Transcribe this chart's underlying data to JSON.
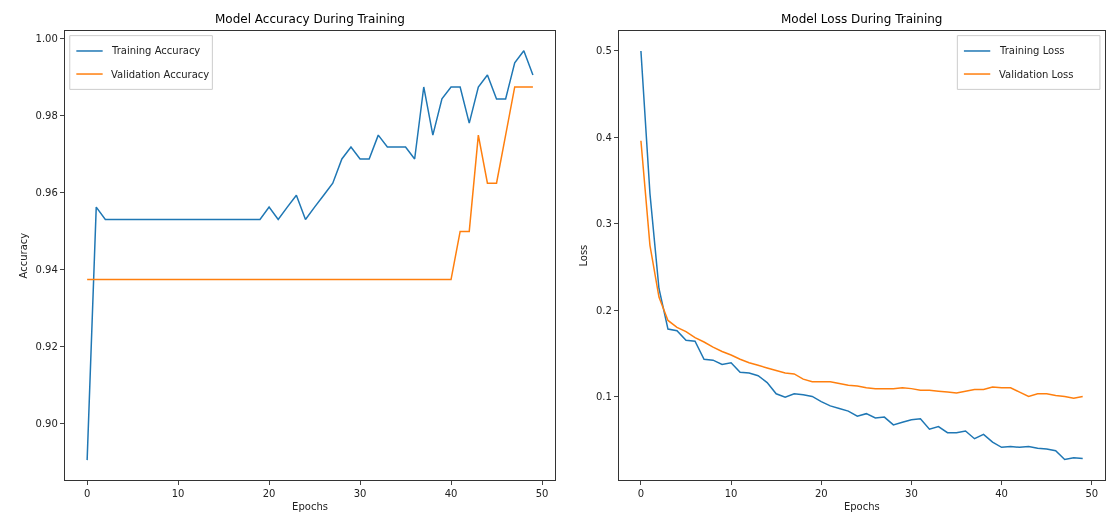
{
  "chart_data": [
    {
      "type": "line",
      "title": "Model Accuracy During Training",
      "xlabel": "Epochs",
      "ylabel": "Accuracy",
      "legend": "top left",
      "grid": false,
      "x": [
        0,
        1,
        2,
        3,
        4,
        5,
        6,
        7,
        8,
        9,
        10,
        11,
        12,
        13,
        14,
        15,
        16,
        17,
        18,
        19,
        20,
        21,
        22,
        23,
        24,
        25,
        26,
        27,
        28,
        29,
        30,
        31,
        32,
        33,
        34,
        35,
        36,
        37,
        38,
        39,
        40,
        41,
        42,
        43,
        44,
        45,
        46,
        47,
        48,
        49
      ],
      "xlim": [
        -2.45,
        51.45
      ],
      "xticks": [
        0,
        10,
        20,
        30,
        40,
        50
      ],
      "ylim": [
        0.8854,
        1.002
      ],
      "yticks": [
        {
          "value": 0.9,
          "label": "0.90"
        },
        {
          "value": 0.92,
          "label": "0.92"
        },
        {
          "value": 0.94,
          "label": "0.94"
        },
        {
          "value": 0.96,
          "label": "0.96"
        },
        {
          "value": 0.98,
          "label": "0.98"
        },
        {
          "value": 1.0,
          "label": "1.00"
        }
      ],
      "series": [
        {
          "name": "Training Accuracy",
          "color": "#1f77b4",
          "values": [
            0.8906,
            0.9563,
            0.9531,
            0.9531,
            0.9531,
            0.9531,
            0.9531,
            0.9531,
            0.9531,
            0.9531,
            0.9531,
            0.9531,
            0.9531,
            0.9531,
            0.9531,
            0.9531,
            0.9531,
            0.9531,
            0.9531,
            0.9531,
            0.9563,
            0.9531,
            0.9563,
            0.9594,
            0.9531,
            0.9563,
            0.9594,
            0.9625,
            0.9688,
            0.9719,
            0.9688,
            0.9688,
            0.975,
            0.9719,
            0.9719,
            0.9719,
            0.9688,
            0.9875,
            0.975,
            0.9844,
            0.9875,
            0.9875,
            0.9781,
            0.9875,
            0.9906,
            0.9844,
            0.9844,
            0.9938,
            0.9969,
            0.9906
          ]
        },
        {
          "name": "Validation Accuracy",
          "color": "#ff7f0e",
          "values": [
            0.9375,
            0.9375,
            0.9375,
            0.9375,
            0.9375,
            0.9375,
            0.9375,
            0.9375,
            0.9375,
            0.9375,
            0.9375,
            0.9375,
            0.9375,
            0.9375,
            0.9375,
            0.9375,
            0.9375,
            0.9375,
            0.9375,
            0.9375,
            0.9375,
            0.9375,
            0.9375,
            0.9375,
            0.9375,
            0.9375,
            0.9375,
            0.9375,
            0.9375,
            0.9375,
            0.9375,
            0.9375,
            0.9375,
            0.9375,
            0.9375,
            0.9375,
            0.9375,
            0.9375,
            0.9375,
            0.9375,
            0.9375,
            0.95,
            0.95,
            0.975,
            0.9625,
            0.9625,
            0.975,
            0.9875,
            0.9875,
            0.9875
          ]
        }
      ]
    },
    {
      "type": "line",
      "title": "Model Loss During Training",
      "xlabel": "Epochs",
      "ylabel": "Loss",
      "legend": "top right",
      "grid": false,
      "x": [
        0,
        1,
        2,
        3,
        4,
        5,
        6,
        7,
        8,
        9,
        10,
        11,
        12,
        13,
        14,
        15,
        16,
        17,
        18,
        19,
        20,
        21,
        22,
        23,
        24,
        25,
        26,
        27,
        28,
        29,
        30,
        31,
        32,
        33,
        34,
        35,
        36,
        37,
        38,
        39,
        40,
        41,
        42,
        43,
        44,
        45,
        46,
        47,
        48,
        49
      ],
      "xlim": [
        -2.45,
        51.45
      ],
      "xticks": [
        0,
        10,
        20,
        30,
        40,
        50
      ],
      "ylim": [
        0.003,
        0.523
      ],
      "yticks": [
        0.1,
        0.2,
        0.3,
        0.4,
        0.5
      ],
      "series": [
        {
          "name": "Training Loss",
          "color": "#1f77b4",
          "values": [
            0.5,
            0.335,
            0.225,
            0.178,
            0.176,
            0.165,
            0.164,
            0.143,
            0.142,
            0.137,
            0.139,
            0.128,
            0.127,
            0.124,
            0.116,
            0.103,
            0.099,
            0.103,
            0.102,
            0.1,
            0.094,
            0.089,
            0.086,
            0.083,
            0.077,
            0.08,
            0.075,
            0.076,
            0.067,
            0.07,
            0.073,
            0.074,
            0.062,
            0.065,
            0.058,
            0.058,
            0.06,
            0.051,
            0.056,
            0.047,
            0.041,
            0.042,
            0.041,
            0.042,
            0.04,
            0.039,
            0.037,
            0.027,
            0.029,
            0.028
          ]
        },
        {
          "name": "Validation Loss",
          "color": "#ff7f0e",
          "values": [
            0.396,
            0.275,
            0.215,
            0.188,
            0.18,
            0.175,
            0.168,
            0.163,
            0.157,
            0.152,
            0.148,
            0.143,
            0.139,
            0.136,
            0.133,
            0.13,
            0.127,
            0.126,
            0.12,
            0.117,
            0.117,
            0.117,
            0.115,
            0.113,
            0.112,
            0.11,
            0.109,
            0.109,
            0.109,
            0.11,
            0.109,
            0.107,
            0.107,
            0.106,
            0.105,
            0.104,
            0.106,
            0.108,
            0.108,
            0.111,
            0.11,
            0.11,
            0.105,
            0.1,
            0.103,
            0.103,
            0.101,
            0.1,
            0.098,
            0.1
          ]
        }
      ]
    }
  ]
}
